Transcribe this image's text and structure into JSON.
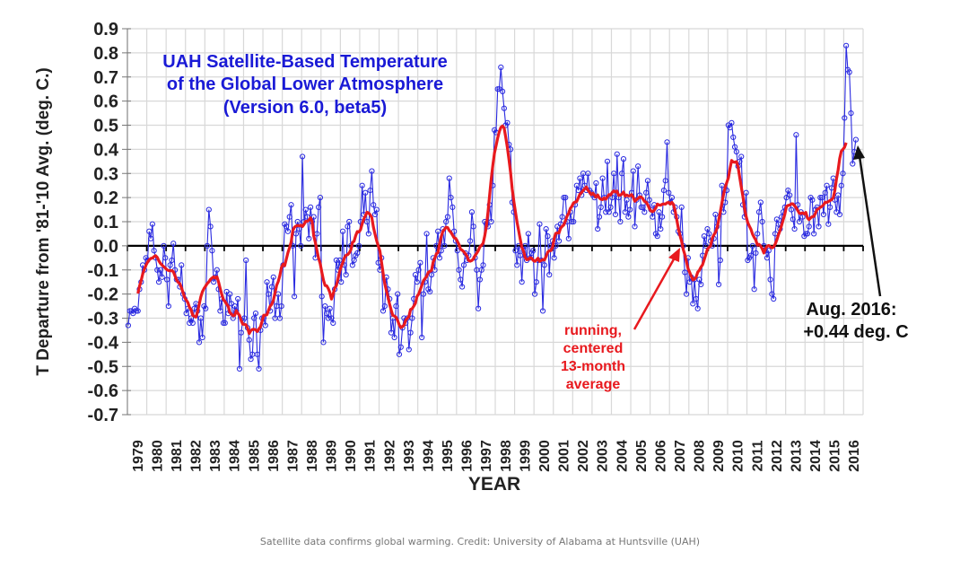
{
  "caption": "Satellite data confirms global warming. Credit: University of Alabama at Huntsville (UAH)",
  "chart_data": {
    "type": "line",
    "title_lines": [
      "UAH Satellite-Based Temperature",
      "of the Global Lower Atmosphere",
      "(Version 6.0, beta5)"
    ],
    "xlabel": "YEAR",
    "ylabel": "T Departure from '81-'10 Avg. (deg. C.)",
    "ylim": [
      -0.7,
      0.9
    ],
    "xlim": [
      1979,
      2017
    ],
    "yticks": [
      "0.9",
      "0.8",
      "0.7",
      "0.6",
      "0.5",
      "0.4",
      "0.3",
      "0.2",
      "0.1",
      "0.0",
      "-0.1",
      "-0.2",
      "-0.3",
      "-0.4",
      "-0.5",
      "-0.6",
      "-0.7"
    ],
    "xticks": [
      "1979",
      "1980",
      "1981",
      "1982",
      "1983",
      "1984",
      "1985",
      "1986",
      "1987",
      "1988",
      "1989",
      "1990",
      "1991",
      "1992",
      "1993",
      "1994",
      "1995",
      "1996",
      "1997",
      "1998",
      "1999",
      "2000",
      "2001",
      "2002",
      "2003",
      "2004",
      "2005",
      "2006",
      "2007",
      "2008",
      "2009",
      "2010",
      "2011",
      "2012",
      "2013",
      "2014",
      "2015",
      "2016"
    ],
    "grid": true,
    "colors": {
      "monthly": "#2a2ae0",
      "average": "#e8191e",
      "title": "#1a1ad6",
      "annotation": "#e8191e"
    },
    "series": [
      {
        "name": "Monthly anomaly",
        "start": "1979-01",
        "values": [
          -0.33,
          -0.27,
          -0.27,
          -0.28,
          -0.26,
          -0.27,
          -0.27,
          -0.18,
          -0.15,
          -0.08,
          -0.1,
          -0.05,
          -0.06,
          0.06,
          0.03,
          0.09,
          -0.02,
          -0.05,
          -0.1,
          -0.15,
          -0.1,
          -0.13,
          0.0,
          -0.05,
          -0.14,
          -0.25,
          -0.08,
          -0.06,
          0.01,
          -0.1,
          -0.14,
          -0.14,
          -0.17,
          -0.08,
          -0.2,
          -0.22,
          -0.28,
          -0.26,
          -0.32,
          -0.3,
          -0.32,
          -0.26,
          -0.24,
          -0.27,
          -0.4,
          -0.3,
          -0.38,
          -0.25,
          -0.26,
          0.0,
          0.15,
          0.08,
          -0.02,
          -0.15,
          -0.13,
          -0.1,
          -0.18,
          -0.27,
          -0.22,
          -0.32,
          -0.32,
          -0.19,
          -0.28,
          -0.2,
          -0.24,
          -0.3,
          -0.25,
          -0.27,
          -0.22,
          -0.51,
          -0.36,
          -0.31,
          -0.3,
          -0.06,
          -0.34,
          -0.39,
          -0.47,
          -0.45,
          -0.3,
          -0.28,
          -0.45,
          -0.51,
          -0.35,
          -0.3,
          -0.3,
          -0.33,
          -0.15,
          -0.2,
          -0.27,
          -0.17,
          -0.13,
          -0.3,
          -0.25,
          -0.2,
          -0.3,
          -0.25,
          -0.08,
          0.09,
          0.08,
          0.06,
          0.12,
          0.17,
          0.0,
          -0.21,
          0.05,
          0.1,
          0.07,
          0.0,
          0.37,
          0.1,
          0.15,
          0.12,
          0.03,
          0.16,
          0.1,
          0.12,
          -0.05,
          0.05,
          0.16,
          0.2,
          -0.21,
          -0.4,
          -0.25,
          -0.28,
          -0.3,
          -0.26,
          -0.3,
          -0.32,
          -0.18,
          -0.06,
          -0.1,
          -0.06,
          -0.15,
          0.06,
          -0.08,
          -0.12,
          0.08,
          0.1,
          0.0,
          -0.08,
          -0.06,
          -0.04,
          -0.03,
          0.0,
          0.1,
          0.25,
          0.13,
          0.22,
          0.1,
          0.05,
          0.23,
          0.31,
          0.17,
          0.13,
          0.15,
          -0.07,
          -0.1,
          -0.05,
          -0.27,
          -0.25,
          -0.13,
          -0.18,
          -0.22,
          -0.36,
          -0.3,
          -0.38,
          -0.25,
          -0.2,
          -0.45,
          -0.42,
          -0.34,
          -0.3,
          -0.32,
          -0.3,
          -0.43,
          -0.36,
          -0.3,
          -0.22,
          -0.12,
          -0.15,
          -0.1,
          -0.07,
          -0.38,
          -0.2,
          -0.15,
          0.05,
          -0.18,
          -0.19,
          -0.12,
          -0.05,
          -0.1,
          0.0,
          0.06,
          -0.05,
          -0.02,
          0.07,
          0.0,
          0.1,
          0.12,
          0.28,
          0.2,
          0.16,
          0.06,
          0.02,
          -0.02,
          -0.1,
          -0.14,
          -0.17,
          -0.08,
          -0.03,
          -0.06,
          -0.04,
          0.02,
          0.14,
          0.08,
          -0.05,
          -0.1,
          -0.26,
          -0.14,
          -0.1,
          -0.08,
          0.1,
          0.09,
          0.08,
          0.17,
          0.1,
          0.25,
          0.48,
          0.47,
          0.65,
          0.65,
          0.74,
          0.64,
          0.57,
          0.5,
          0.51,
          0.42,
          0.4,
          0.18,
          0.14,
          -0.02,
          -0.08,
          0.0,
          -0.04,
          -0.15,
          -0.02,
          0.0,
          -0.06,
          0.05,
          -0.05,
          -0.03,
          -0.02,
          -0.2,
          -0.15,
          -0.06,
          0.09,
          -0.06,
          -0.27,
          -0.08,
          0.07,
          0.04,
          -0.12,
          0.0,
          0.02,
          -0.05,
          0.0,
          0.08,
          0.02,
          0.09,
          0.12,
          0.2,
          0.2,
          0.1,
          0.03,
          0.14,
          0.1,
          0.1,
          0.17,
          0.25,
          0.23,
          0.28,
          0.21,
          0.3,
          0.25,
          0.23,
          0.3,
          0.23,
          0.22,
          0.21,
          0.2,
          0.26,
          0.07,
          0.12,
          0.16,
          0.28,
          0.2,
          0.14,
          0.35,
          0.14,
          0.16,
          0.2,
          0.3,
          0.13,
          0.38,
          0.2,
          0.1,
          0.3,
          0.36,
          0.14,
          0.19,
          0.12,
          0.15,
          0.22,
          0.31,
          0.08,
          0.19,
          0.33,
          0.21,
          0.16,
          0.16,
          0.14,
          0.22,
          0.27,
          0.19,
          0.15,
          0.12,
          0.17,
          0.05,
          0.04,
          0.14,
          0.07,
          0.12,
          0.23,
          0.27,
          0.43,
          0.22,
          0.18,
          0.2,
          0.14,
          0.16,
          0.12,
          0.06,
          0.05,
          0.16,
          0.0,
          -0.11,
          -0.2,
          -0.05,
          -0.15,
          -0.13,
          -0.24,
          -0.14,
          -0.22,
          -0.26,
          -0.14,
          -0.16,
          -0.04,
          0.04,
          0.0,
          0.07,
          0.05,
          0.02,
          0.0,
          0.03,
          0.13,
          0.08,
          -0.16,
          -0.06,
          0.25,
          0.14,
          0.18,
          0.23,
          0.5,
          0.49,
          0.51,
          0.45,
          0.41,
          0.39,
          0.33,
          0.35,
          0.37,
          0.17,
          0.12,
          0.22,
          -0.06,
          -0.05,
          -0.04,
          0.0,
          -0.18,
          -0.03,
          0.05,
          0.14,
          0.18,
          0.1,
          0.0,
          -0.02,
          -0.05,
          -0.02,
          -0.14,
          -0.2,
          -0.22,
          0.05,
          0.11,
          0.09,
          0.07,
          0.12,
          0.14,
          0.16,
          0.2,
          0.23,
          0.21,
          0.15,
          0.11,
          0.07,
          0.46,
          0.17,
          0.1,
          0.14,
          0.12,
          0.04,
          0.05,
          0.05,
          0.08,
          0.2,
          0.19,
          0.05,
          0.15,
          0.16,
          0.08,
          0.2,
          0.2,
          0.13,
          0.22,
          0.25,
          0.09,
          0.16,
          0.24,
          0.28,
          0.19,
          0.14,
          0.21,
          0.13,
          0.25,
          0.3,
          0.53,
          0.83,
          0.73,
          0.72,
          0.55,
          0.34,
          0.39,
          0.44
        ]
      },
      {
        "name": "running, centered 13-month average",
        "start": "1979-07",
        "values_yearly_anchor": "computed from monthly series"
      }
    ],
    "annotations": [
      {
        "text_lines": [
          "running,",
          "centered",
          "13-month",
          "average"
        ],
        "color": "#e8191e"
      },
      {
        "text_lines": [
          "Aug. 2016:",
          "+0.44 deg. C"
        ],
        "color": "#111111"
      }
    ]
  }
}
